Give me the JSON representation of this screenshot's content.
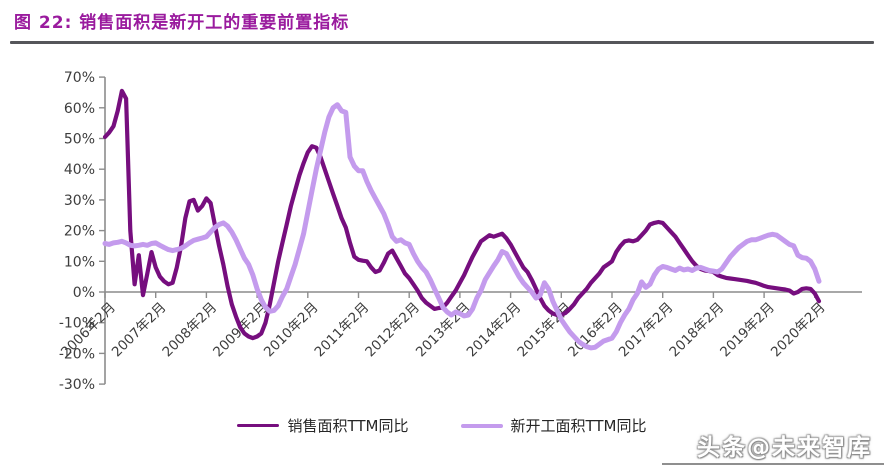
{
  "title": "图 22:  销售面积是新开工的重要前置指标",
  "watermark": "头条@未来智库",
  "legend": {
    "series1": "销售面积TTM同比",
    "series2": "新开工面积TTM同比"
  },
  "colors": {
    "title": "#9A1B9E",
    "series1": "#760E7E",
    "series2": "#C49BED",
    "axis": "#8c8c8c",
    "tick_label": "#3d3d3d"
  },
  "chart_data": {
    "type": "line",
    "title": "销售面积是新开工的重要前置指标",
    "x_unit": "month (monthly data, 2006-02 to 2020-03)",
    "x_tick_positions": [
      0,
      12,
      24,
      36,
      48,
      60,
      72,
      84,
      96,
      108,
      120,
      132,
      144,
      156,
      168
    ],
    "x_tick_labels": [
      "2006年2月",
      "2007年2月",
      "2008年2月",
      "2009年2月",
      "2010年2月",
      "2011年2月",
      "2012年2月",
      "2013年2月",
      "2014年2月",
      "2015年2月",
      "2016年2月",
      "2017年2月",
      "2018年2月",
      "2019年2月",
      "2020年2月"
    ],
    "ylim": [
      -30,
      70
    ],
    "y_ticks": [
      70,
      60,
      50,
      40,
      30,
      20,
      10,
      0,
      -10,
      -20,
      -30
    ],
    "y_tick_labels": [
      "70%",
      "60%",
      "50%",
      "40%",
      "30%",
      "20%",
      "10%",
      "0%",
      "-10%",
      "-20%",
      "-30%"
    ],
    "grid": false,
    "legend_position": "bottom",
    "series": [
      {
        "name": "销售面积TTM同比",
        "color": "#760E7E",
        "values": [
          50.5,
          52,
          54,
          59,
          65.5,
          63,
          20,
          2.5,
          12,
          -1,
          6,
          13,
          8,
          5,
          3.5,
          2.5,
          3,
          8,
          15,
          24,
          29.5,
          30,
          26.5,
          28,
          30.5,
          29,
          22,
          15,
          9,
          2,
          -4,
          -8,
          -11.5,
          -13.5,
          -14.5,
          -15,
          -14.5,
          -13.5,
          -10,
          -4,
          3,
          10,
          16,
          22,
          28,
          33,
          38,
          42,
          45.5,
          47.5,
          47,
          44,
          40,
          36,
          32,
          28,
          24,
          21,
          16,
          11.5,
          10.5,
          10.2,
          10,
          8,
          6.5,
          7,
          9.5,
          12.5,
          13.5,
          11,
          8.5,
          6,
          4.5,
          2.5,
          0.5,
          -2,
          -3.5,
          -4.5,
          -5.5,
          -5.2,
          -5,
          -3.5,
          -1.5,
          0.5,
          3,
          5.5,
          8.5,
          11.5,
          14,
          16.5,
          17.5,
          18.5,
          18,
          18.5,
          19,
          17.5,
          15.5,
          13,
          10.5,
          8,
          6.5,
          4,
          1,
          -2,
          -4.5,
          -6,
          -7,
          -7.5,
          -7.5,
          -6.8,
          -5.5,
          -4,
          -2,
          -0.5,
          1,
          3,
          4.5,
          6,
          8,
          9,
          10,
          13,
          15,
          16.5,
          16.8,
          16.5,
          17,
          18.5,
          20,
          22,
          22.5,
          22.8,
          22.5,
          21,
          19.5,
          18,
          16,
          14,
          12,
          10,
          8.5,
          7.5,
          7,
          6.8,
          6.5,
          5.5,
          5,
          4.6,
          4.4,
          4.2,
          4,
          3.8,
          3.6,
          3.3,
          3,
          2.5,
          2,
          1.6,
          1.4,
          1.2,
          1,
          0.8,
          0.5,
          -0.5,
          0,
          1,
          1.2,
          1,
          -0.5,
          -3
        ]
      },
      {
        "name": "新开工面积TTM同比",
        "color": "#C49BED",
        "values": [
          15.8,
          15.5,
          16,
          16.2,
          16.5,
          16,
          15.2,
          15,
          15.2,
          15.5,
          15.2,
          15.8,
          16,
          15.2,
          14.5,
          13.8,
          13.5,
          13.8,
          14.2,
          15,
          16,
          16.8,
          17.2,
          17.6,
          18,
          19.5,
          21,
          22,
          22.5,
          21.5,
          19.5,
          17,
          14,
          11,
          9,
          5.5,
          1,
          -2.5,
          -5,
          -6.3,
          -6,
          -4.5,
          -1.5,
          1,
          5,
          9,
          14,
          19,
          26,
          33,
          40,
          46,
          52,
          57,
          60,
          61,
          59,
          58.5,
          44,
          41,
          39.5,
          39.5,
          36,
          33,
          30.5,
          28,
          25.5,
          22,
          18,
          16.5,
          17,
          16,
          15.5,
          12.5,
          10,
          8,
          6.5,
          4,
          1,
          -2,
          -5,
          -6.5,
          -7.5,
          -6.5,
          -7,
          -7.8,
          -7.5,
          -5.5,
          -2,
          0.5,
          4,
          6.3,
          8.5,
          10.5,
          13.2,
          12.5,
          10,
          7.5,
          5,
          3,
          1.5,
          0,
          -2,
          -1,
          3,
          1,
          -3,
          -6,
          -9,
          -11,
          -13,
          -14.5,
          -16,
          -17,
          -17.8,
          -18.2,
          -18,
          -17,
          -16,
          -15.5,
          -15,
          -13,
          -10,
          -7.5,
          -5.5,
          -2.5,
          -0.5,
          3.3,
          1.5,
          2.5,
          5.5,
          7.5,
          8.3,
          8,
          7.5,
          7,
          7.8,
          7.2,
          7.5,
          7,
          7.8,
          8,
          7.5,
          7,
          6.8,
          6.5,
          7.5,
          9.5,
          11.5,
          13,
          14.5,
          15.5,
          16.5,
          17,
          17,
          17.5,
          18,
          18.5,
          18.8,
          18.5,
          17.5,
          16.5,
          15.5,
          15,
          12,
          11.2,
          11,
          10,
          7.5,
          3.5
        ]
      }
    ]
  }
}
